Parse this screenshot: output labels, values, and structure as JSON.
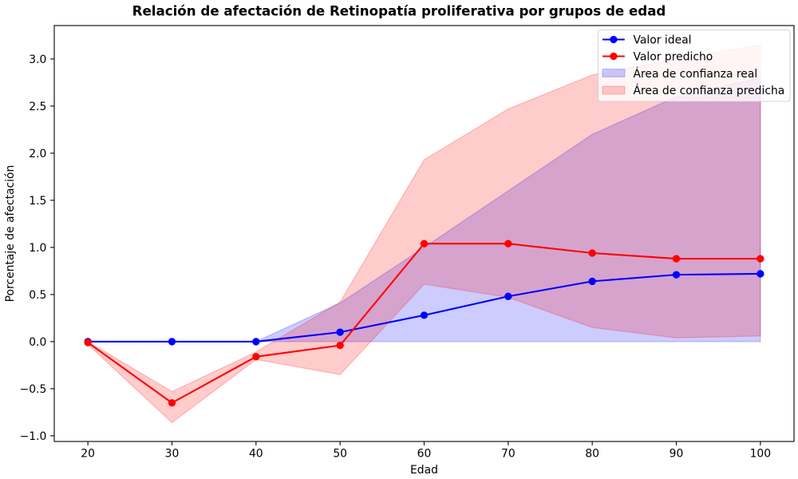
{
  "chart_data": {
    "type": "line",
    "title": "Relación de afectación de Retinopatía proliferativa por grupos de edad",
    "xlabel": "Edad",
    "ylabel": "Porcentaje de afectación",
    "xlim": [
      16,
      104
    ],
    "ylim": [
      -1.06,
      3.355
    ],
    "xticks": [
      20,
      30,
      40,
      50,
      60,
      70,
      80,
      90,
      100
    ],
    "xtick_labels": [
      "20",
      "30",
      "40",
      "50",
      "60",
      "70",
      "80",
      "90",
      "100"
    ],
    "yticks": [
      -1.0,
      -0.5,
      0.0,
      0.5,
      1.0,
      1.5,
      2.0,
      2.5,
      3.0
    ],
    "ytick_labels": [
      "−1.0",
      "−0.5",
      "0.0",
      "0.5",
      "1.0",
      "1.5",
      "2.0",
      "2.5",
      "3.0"
    ],
    "x": [
      20,
      30,
      40,
      50,
      60,
      70,
      80,
      90,
      100
    ],
    "series": [
      {
        "name": "Valor ideal",
        "color": "#0000ff",
        "values": [
          0.0,
          0.0,
          0.0,
          0.1,
          0.28,
          0.48,
          0.64,
          0.71,
          0.72
        ]
      },
      {
        "name": "Valor predicho",
        "color": "#ff0000",
        "values": [
          -0.01,
          -0.65,
          -0.16,
          -0.04,
          1.04,
          1.04,
          0.94,
          0.88,
          0.88
        ]
      }
    ],
    "bands": [
      {
        "name": "Área de confianza real",
        "color": "#0000ff",
        "lower": [
          0.0,
          0.0,
          0.0,
          0.0,
          0.0,
          0.0,
          0.0,
          0.0,
          0.0
        ],
        "upper": [
          0.0,
          0.0,
          0.0,
          0.41,
          1.0,
          1.6,
          2.2,
          2.6,
          2.8
        ]
      },
      {
        "name": "Área de confianza predicha",
        "color": "#ff0000",
        "lower": [
          -0.03,
          -0.86,
          -0.19,
          -0.35,
          0.61,
          0.47,
          0.15,
          0.04,
          0.06
        ],
        "upper": [
          0.0,
          -0.53,
          -0.11,
          0.42,
          1.93,
          2.47,
          2.83,
          3.0,
          3.15
        ]
      }
    ],
    "legend": "upper right",
    "grid": false
  }
}
